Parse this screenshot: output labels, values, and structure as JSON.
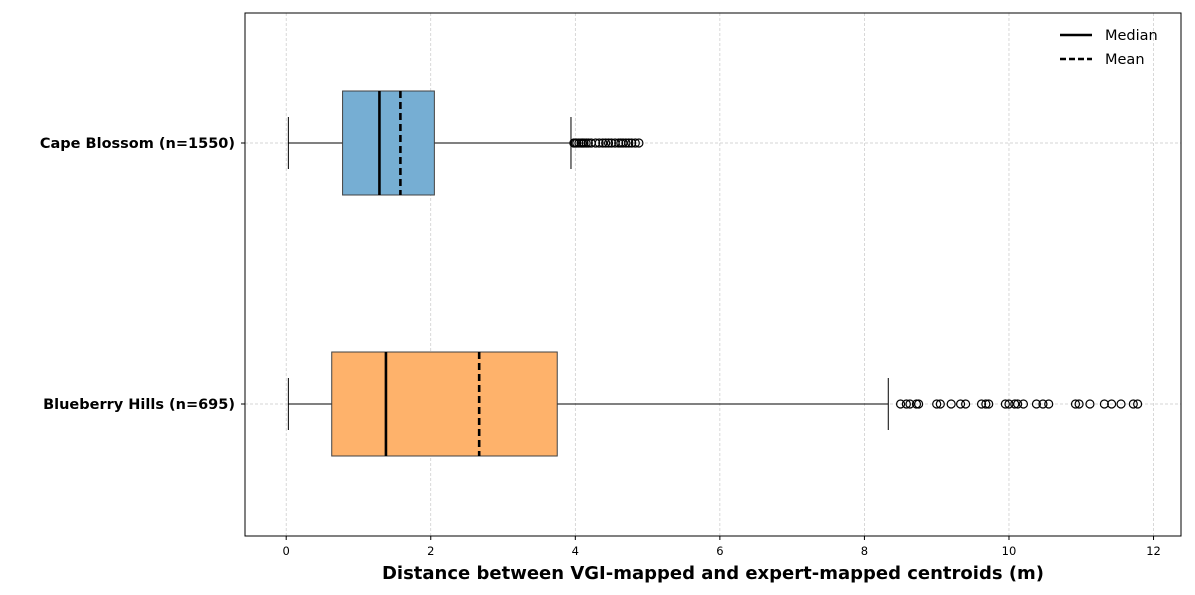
{
  "chart_data": {
    "type": "boxplot",
    "orientation": "horizontal",
    "title": "",
    "xlabel": "Distance between VGI-mapped and expert-mapped centroids (m)",
    "ylabel": "",
    "xlim": [
      -0.57,
      12.38
    ],
    "xticks": [
      0,
      2,
      4,
      6,
      8,
      10,
      12
    ],
    "grid": true,
    "legend": {
      "position": "top-right",
      "entries": [
        {
          "label": "Median",
          "style": "solid"
        },
        {
          "label": "Mean",
          "style": "dashed"
        }
      ]
    },
    "series": [
      {
        "name": "Cape Blossom (n=1550)",
        "color": "#76aed3",
        "whisker_low": 0.03,
        "q1": 0.78,
        "median": 1.29,
        "mean": 1.58,
        "q3": 2.05,
        "whisker_high": 3.94,
        "outliers": [
          3.98,
          4.0,
          4.02,
          4.05,
          4.08,
          4.1,
          4.12,
          4.15,
          4.18,
          4.22,
          4.28,
          4.33,
          4.38,
          4.42,
          4.46,
          4.5,
          4.55,
          4.6,
          4.63,
          4.66,
          4.7,
          4.74,
          4.78,
          4.83,
          4.88
        ]
      },
      {
        "name": "Blueberry Hills (n=695)",
        "color": "#feb26b",
        "whisker_low": 0.03,
        "q1": 0.63,
        "median": 1.38,
        "mean": 2.67,
        "q3": 3.75,
        "whisker_high": 8.33,
        "outliers": [
          8.5,
          8.58,
          8.63,
          8.72,
          8.75,
          9.0,
          9.05,
          9.2,
          9.33,
          9.4,
          9.62,
          9.68,
          9.72,
          9.95,
          10.0,
          10.08,
          10.12,
          10.2,
          10.38,
          10.47,
          10.55,
          10.92,
          10.97,
          11.12,
          11.32,
          11.42,
          11.55,
          11.72,
          11.78
        ]
      }
    ]
  }
}
